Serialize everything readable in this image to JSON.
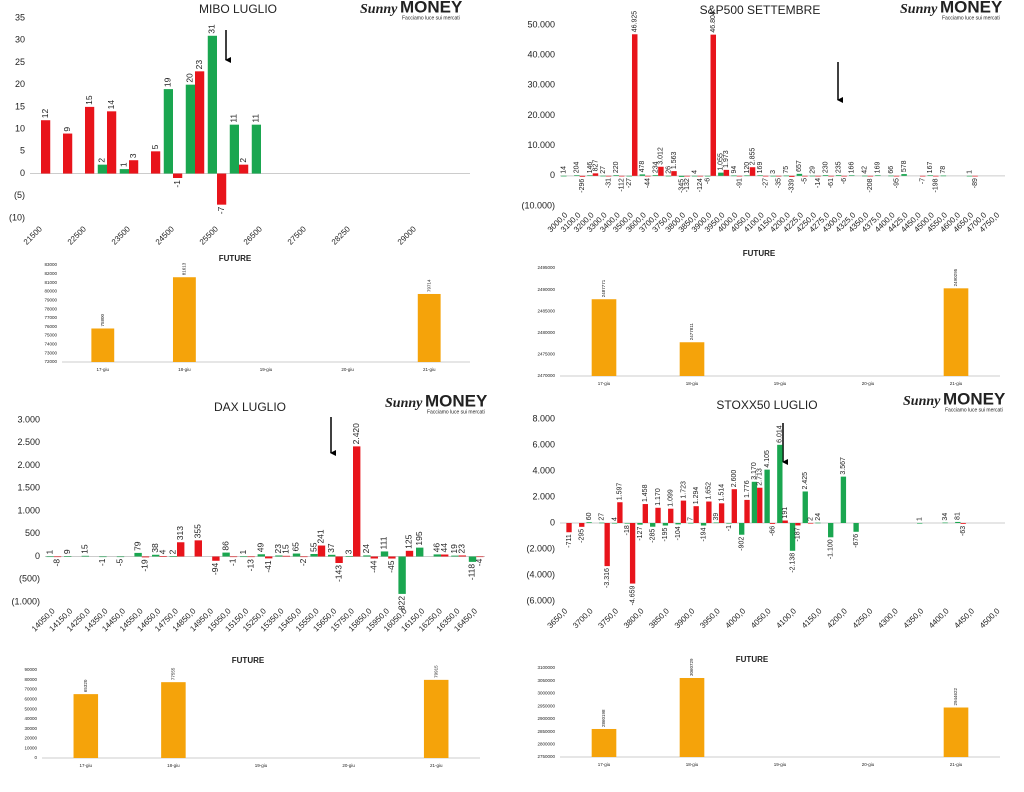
{
  "brand": {
    "logo": "Sunny",
    "name": "MONEY",
    "tagline": "Facciamo luce sui mercati"
  },
  "chart_data": [
    {
      "type": "bar",
      "title": "MIBO LUGLIO",
      "categories": [
        "21500",
        null,
        "22500",
        null,
        "23500",
        null,
        "24500",
        null,
        "25500",
        null,
        "26500",
        null,
        "27500",
        null,
        "28250",
        null,
        null,
        "29000",
        null,
        null
      ],
      "series": [
        {
          "color": "#1aa650",
          "values": [
            null,
            null,
            null,
            2,
            1,
            null,
            19,
            20,
            31,
            11,
            11,
            null,
            null,
            null,
            null,
            null,
            null,
            null,
            null,
            null
          ]
        },
        {
          "color": "#e8141b",
          "values": [
            12,
            9,
            15,
            14,
            3,
            5,
            -1,
            23,
            -7,
            2,
            null,
            null,
            null,
            null,
            null,
            null,
            null,
            null,
            null,
            null
          ]
        }
      ],
      "ylim": [
        -10,
        35
      ],
      "yticks": [
        {
          "value": -10,
          "label": "(10)"
        },
        {
          "value": -5,
          "label": "(5)"
        },
        0,
        5,
        10,
        15,
        20,
        25,
        30,
        35
      ],
      "grid": false
    },
    {
      "type": "bar",
      "title": "FUTURE",
      "categories": [
        "17-giu",
        "18-giu",
        "19-giu",
        "20-giu",
        "21-giu"
      ],
      "values": [
        75800,
        81613,
        null,
        null,
        79714
      ],
      "color": "#f5a30a",
      "ylim": [
        72000,
        83000
      ],
      "yticks": [
        72000,
        73000,
        74000,
        75000,
        76000,
        77000,
        78000,
        79000,
        80000,
        81000,
        82000,
        83000
      ],
      "grid": false
    },
    {
      "type": "bar",
      "title": "S&P500 SETTEMBRE",
      "categories": [
        "3000,0",
        "3100,0",
        "3200,0",
        "3300,0",
        "3400,0",
        "3500,0",
        "3600,0",
        "3700,0",
        "3750,0",
        "3800,0",
        "3850,0",
        "3900,0",
        "3950,0",
        "4000,0",
        "4050,0",
        "4100,0",
        "4150,0",
        "4200,0",
        "4225,0",
        "4250,0",
        "4275,0",
        "4300,0",
        "4325,0",
        "4350,0",
        "4375,0",
        "4400,0",
        "4425,0",
        "4450,0",
        "4500,0",
        "4550,0",
        "4600,0",
        "4650,0",
        "4700,0",
        "4750,0"
      ],
      "series": [
        {
          "color": "#1aa650",
          "values": [
            14,
            204,
            146,
            27,
            220,
            -27,
            478,
            234,
            26,
            -345,
            4,
            -6,
            1055,
            94,
            120,
            169,
            3,
            75,
            657,
            29,
            230,
            235,
            166,
            42,
            169,
            66,
            578,
            null,
            167,
            78,
            null,
            1,
            null,
            null
          ],
          "value_labels": [
            "14",
            "204",
            "146",
            "27",
            "220",
            "-27",
            "478",
            "234",
            "26",
            "-345",
            "4",
            "-6",
            "1.055",
            "94",
            "120",
            "169",
            "3",
            "75",
            "657",
            "29",
            "230",
            "235",
            "166",
            "42",
            "169",
            "66",
            "578",
            null,
            "167",
            "78",
            null,
            "1",
            null,
            null
          ]
        },
        {
          "color": "#e8141b",
          "values": [
            null,
            -296,
            827,
            -31,
            -112,
            46925,
            -44,
            3012,
            1563,
            -132,
            -124,
            46804,
            1973,
            -91,
            2855,
            -27,
            -35,
            -339,
            -5,
            -14,
            -61,
            -6,
            null,
            -208,
            null,
            -95,
            null,
            -7,
            -198,
            null,
            null,
            -89,
            null,
            null
          ],
          "value_labels": [
            null,
            "-296",
            "827",
            "-31",
            "-112",
            "46.925",
            "-44",
            "3.012",
            "1.563",
            "-132",
            "-124",
            "46.804",
            "1.973",
            "-91",
            "2.855",
            "-27",
            "-35",
            "-339",
            "-5",
            "-14",
            "-61",
            "-6",
            null,
            "-208",
            null,
            "-95",
            null,
            "-7",
            "-198",
            null,
            null,
            "-89",
            null,
            null
          ]
        }
      ],
      "ylim": [
        -10000,
        50000
      ],
      "yticks": [
        {
          "value": -10000,
          "label": "(10.000)"
        },
        0,
        {
          "value": 10000,
          "label": "10.000"
        },
        {
          "value": 20000,
          "label": "20.000"
        },
        {
          "value": 30000,
          "label": "30.000"
        },
        {
          "value": 40000,
          "label": "40.000"
        },
        {
          "value": 50000,
          "label": "50.000"
        }
      ],
      "grid": false
    },
    {
      "type": "bar",
      "title": "FUTURE",
      "categories": [
        "17-giu",
        "18-giu",
        "19-giu",
        "20-giu",
        "21-giu"
      ],
      "values": [
        2487771,
        2477811,
        null,
        null,
        2490295
      ],
      "color": "#f5a30a",
      "ylim": [
        2470000,
        2495000
      ],
      "yticks": [
        2470000,
        2475000,
        2480000,
        2485000,
        2490000,
        2495000
      ],
      "grid": false
    },
    {
      "type": "bar",
      "title": "DAX LUGLIO",
      "categories": [
        "14050,0",
        "14150,0",
        "14250,0",
        "14350,0",
        "14450,0",
        "14550,0",
        "14650,0",
        "14750,0",
        "14850,0",
        "14950,0",
        "15050,0",
        "15150,0",
        "15250,0",
        "15350,0",
        "15450,0",
        "15550,0",
        "15650,0",
        "15750,0",
        "15850,0",
        "15950,0",
        "16050,0",
        "16150,0",
        "16250,0",
        "16350,0",
        "16450,0"
      ],
      "series": [
        {
          "color": "#1aa650",
          "values": [
            1,
            9,
            15,
            -1,
            -5,
            79,
            38,
            2,
            null,
            null,
            86,
            1,
            49,
            23,
            65,
            55,
            37,
            3,
            24,
            111,
            -822,
            195,
            46,
            19,
            -118
          ]
        },
        {
          "color": "#e8141b",
          "values": [
            -8,
            null,
            null,
            null,
            null,
            -19,
            4,
            313,
            355,
            -94,
            -1,
            -13,
            -41,
            15,
            -2,
            241,
            -143,
            2420,
            -44,
            -45,
            125,
            null,
            44,
            23,
            -4
          ],
          "value_labels": [
            "-8",
            null,
            null,
            null,
            null,
            "-19",
            "4",
            "313",
            "355",
            "-94",
            "-1",
            "-13",
            "-41",
            "15",
            "-2",
            "241",
            "-143",
            "2.420",
            "-44",
            "-45",
            "125",
            null,
            "44",
            "23",
            "-4"
          ]
        }
      ],
      "ylim": [
        -1000,
        3000
      ],
      "yticks": [
        {
          "value": -1000,
          "label": "(1.000)"
        },
        {
          "value": -500,
          "label": "(500)"
        },
        0,
        500,
        {
          "value": 1000,
          "label": "1.000"
        },
        {
          "value": 1500,
          "label": "1.500"
        },
        {
          "value": 2000,
          "label": "2.000"
        },
        {
          "value": 2500,
          "label": "2.500"
        },
        {
          "value": 3000,
          "label": "3.000"
        }
      ],
      "grid": false
    },
    {
      "type": "bar",
      "title": "FUTURE",
      "categories": [
        "17-giu",
        "18-giu",
        "19-giu",
        "20-giu",
        "21-giu"
      ],
      "values": [
        65320,
        77555,
        null,
        null,
        79915
      ],
      "color": "#f5a30a",
      "ylim": [
        0,
        90000
      ],
      "yticks": [
        0,
        10000,
        20000,
        30000,
        40000,
        50000,
        60000,
        70000,
        80000,
        90000
      ],
      "grid": false
    },
    {
      "type": "bar",
      "title": "STOXX50 LUGLIO",
      "categories": [
        "3650,0",
        null,
        "3700,0",
        null,
        "3750,0",
        null,
        "3800,0",
        null,
        "3850,0",
        null,
        "3900,0",
        null,
        "3950,0",
        null,
        "4000,0",
        null,
        "4050,0",
        null,
        "4100,0",
        null,
        "4150,0",
        null,
        "4200,0",
        null,
        "4250,0",
        null,
        "4300,0",
        null,
        "4350,0",
        null,
        "4400,0",
        null,
        "4450,0",
        null,
        "4500,0"
      ],
      "series": [
        {
          "color": "#1aa650",
          "values": [
            null,
            null,
            60,
            27,
            4,
            -18,
            -127,
            -285,
            -195,
            -104,
            7,
            -194,
            39,
            -1,
            -902,
            3170,
            4105,
            6014,
            -2138,
            2425,
            24,
            -1100,
            3567,
            -676,
            null,
            null,
            null,
            null,
            1,
            null,
            34,
            81,
            null,
            null,
            null
          ],
          "value_labels": [
            null,
            null,
            "60",
            "27",
            "4",
            "-18",
            "-127",
            "-285",
            "-195",
            "-104",
            "7",
            "-194",
            "39",
            "-1",
            "-902",
            "3.170",
            "4.105",
            "6.014",
            "-2.138",
            "2.425",
            "24",
            "-1.100",
            "3.567",
            "-676",
            null,
            null,
            null,
            null,
            "1",
            null,
            "34",
            "81",
            null,
            null,
            null
          ]
        },
        {
          "color": "#e8141b",
          "values": [
            -711,
            -295,
            null,
            -3316,
            1597,
            -4659,
            1458,
            1170,
            1099,
            1723,
            1294,
            1652,
            1514,
            2600,
            1776,
            2713,
            -66,
            191,
            -187,
            2,
            null,
            null,
            null,
            null,
            null,
            null,
            null,
            null,
            null,
            null,
            null,
            -63,
            null,
            null,
            null
          ],
          "value_labels": [
            "-711",
            "-295",
            null,
            "-3.316",
            "1.597",
            "-4.659",
            "1.458",
            "1.170",
            "1.099",
            "1.723",
            "1.294",
            "1.652",
            "1.514",
            "2.600",
            "1.776",
            "2.713",
            "-66",
            "191",
            "-187",
            "2",
            null,
            null,
            null,
            null,
            null,
            null,
            null,
            null,
            null,
            null,
            null,
            "-63",
            null,
            null,
            null
          ]
        }
      ],
      "ylim": [
        -6000,
        8000
      ],
      "yticks": [
        {
          "value": -6000,
          "label": "(6.000)"
        },
        {
          "value": -4000,
          "label": "(4.000)"
        },
        {
          "value": -2000,
          "label": "(2.000)"
        },
        0,
        {
          "value": 2000,
          "label": "2.000"
        },
        {
          "value": 4000,
          "label": "4.000"
        },
        {
          "value": 6000,
          "label": "6.000"
        },
        {
          "value": 8000,
          "label": "8.000"
        }
      ],
      "grid": false
    },
    {
      "type": "bar",
      "title": "FUTURE",
      "categories": [
        "17-giu",
        "18-giu",
        "19-giu",
        "20-giu",
        "21-giu"
      ],
      "values": [
        2860198,
        3060729,
        null,
        null,
        2944622
      ],
      "color": "#f5a30a",
      "ylim": [
        2750000,
        3100000
      ],
      "yticks": [
        2750000,
        2800000,
        2850000,
        2900000,
        2950000,
        3000000,
        3050000,
        3100000
      ],
      "grid": false
    }
  ]
}
